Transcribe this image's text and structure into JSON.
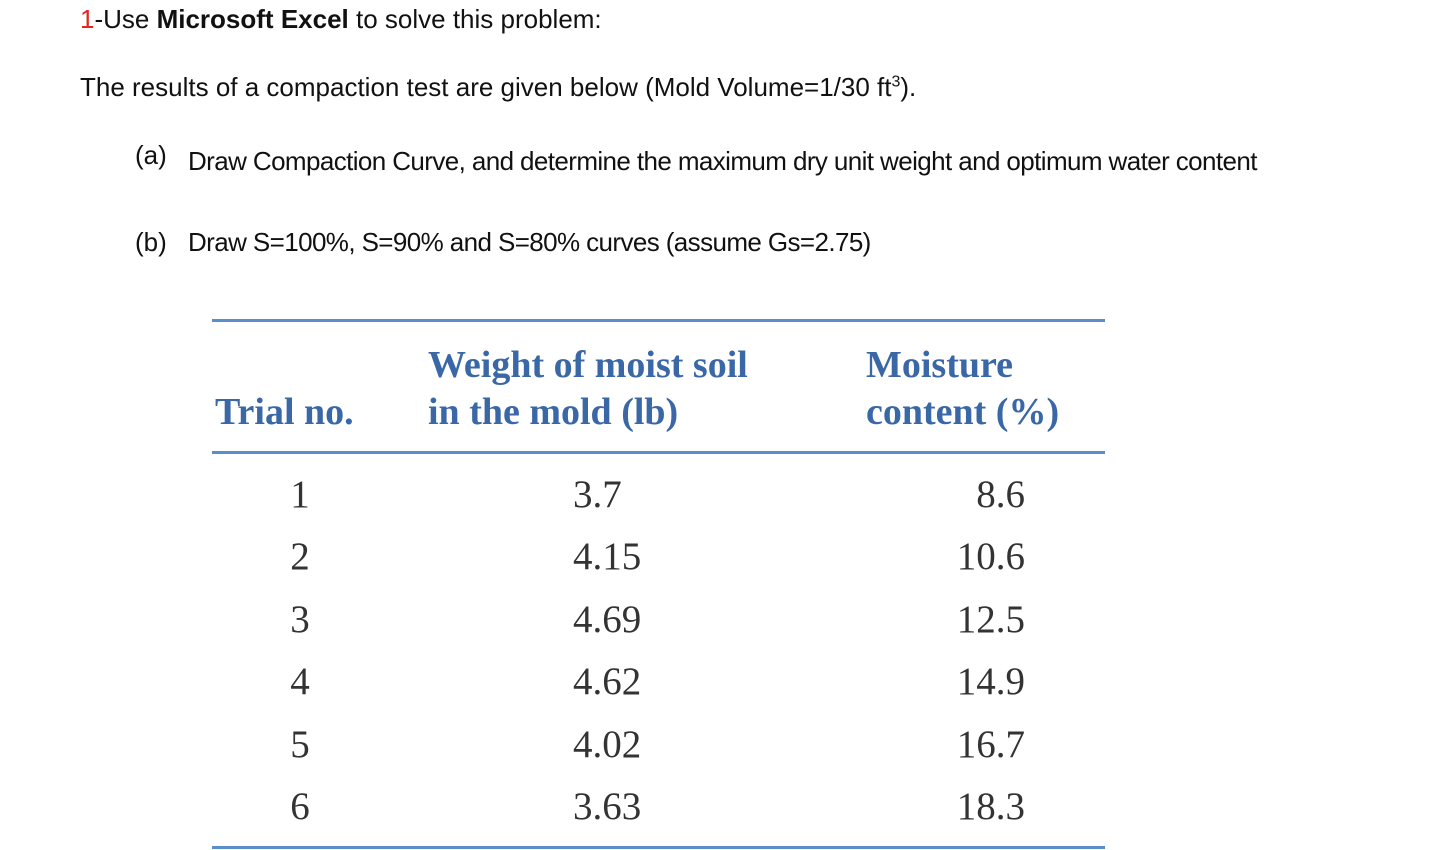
{
  "problem": {
    "number": "1",
    "prefix": "-Use ",
    "bold": "Microsoft Excel",
    "suffix": " to solve this problem:"
  },
  "intro": {
    "text": "The results of a compaction test are given below (Mold Volume=1/30 ft",
    "superscript": "3",
    "end": ")."
  },
  "tasks": [
    {
      "label": "(a)",
      "text": "Draw Compaction Curve, and determine the maximum dry unit weight and optimum water content"
    },
    {
      "label": "(b)",
      "text": "Draw S=100%, S=90% and S=80% curves (assume Gs=2.75)"
    }
  ],
  "table": {
    "columns": [
      [
        "Trial no."
      ],
      [
        "Weight of moist soil",
        "in the mold (lb)"
      ],
      [
        "Moisture",
        "content (%)"
      ]
    ],
    "rows": [
      [
        1,
        3.7,
        8.6
      ],
      [
        2,
        4.15,
        10.6
      ],
      [
        3,
        4.69,
        12.5
      ],
      [
        4,
        4.62,
        14.9
      ],
      [
        5,
        4.02,
        16.7
      ],
      [
        6,
        3.63,
        18.3
      ]
    ]
  }
}
